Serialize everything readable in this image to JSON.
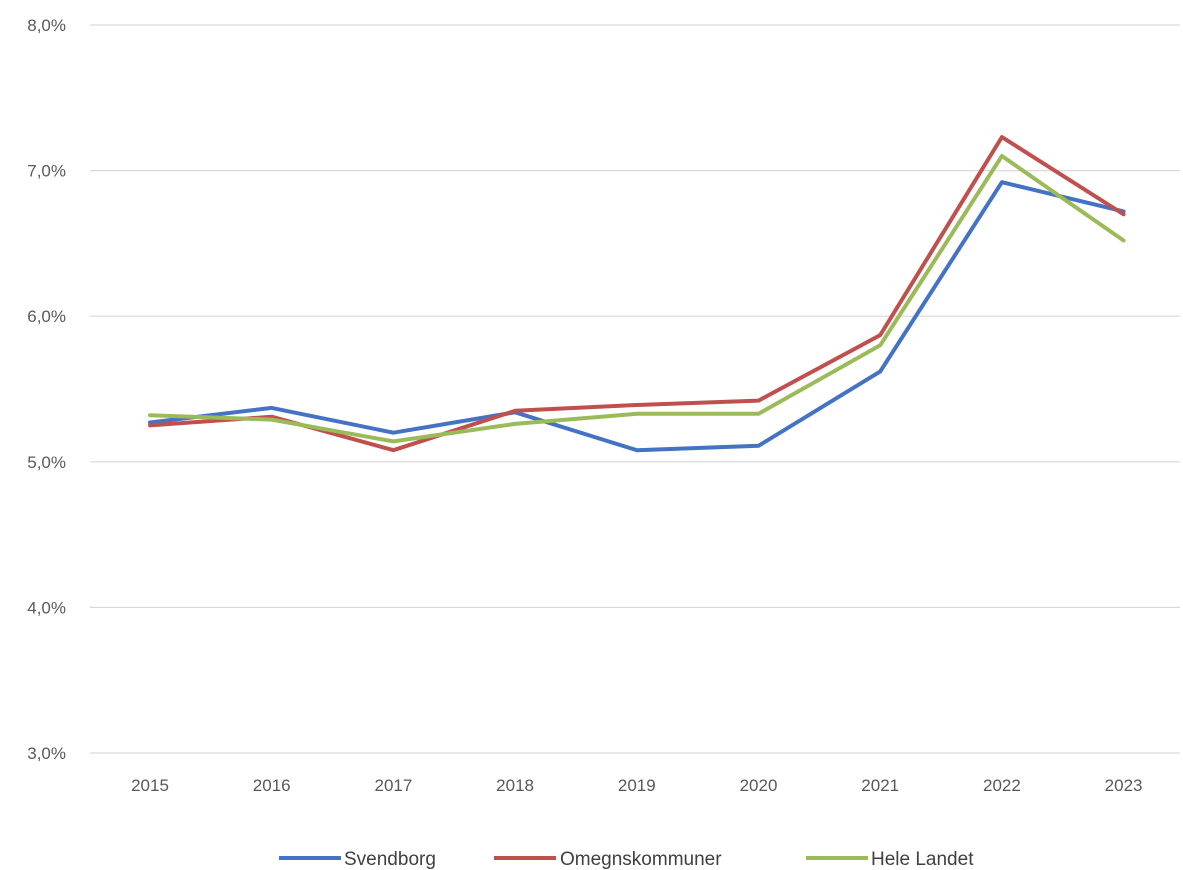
{
  "chart_data": {
    "type": "line",
    "title": "",
    "xlabel": "",
    "ylabel": "",
    "categories": [
      "2015",
      "2016",
      "2017",
      "2018",
      "2019",
      "2020",
      "2021",
      "2022",
      "2023"
    ],
    "y_ticks": [
      {
        "value": 3.0,
        "label": "3,0%"
      },
      {
        "value": 4.0,
        "label": "4,0%"
      },
      {
        "value": 5.0,
        "label": "5,0%"
      },
      {
        "value": 6.0,
        "label": "6,0%"
      },
      {
        "value": 7.0,
        "label": "7,0%"
      },
      {
        "value": 8.0,
        "label": "8,0%"
      }
    ],
    "ylim": [
      3.0,
      8.0
    ],
    "grid": true,
    "legend_position": "bottom",
    "series": [
      {
        "name": "Svendborg",
        "color": "#4472C4",
        "values": [
          5.27,
          5.37,
          5.2,
          5.34,
          5.08,
          5.11,
          5.62,
          6.92,
          6.72
        ]
      },
      {
        "name": "Omegnskommuner",
        "color": "#C0504D",
        "values": [
          5.25,
          5.31,
          5.08,
          5.35,
          5.39,
          5.42,
          5.87,
          7.23,
          6.7
        ]
      },
      {
        "name": "Hele Landet",
        "color": "#9BBB59",
        "values": [
          5.32,
          5.29,
          5.14,
          5.26,
          5.33,
          5.33,
          5.8,
          7.1,
          6.52
        ]
      }
    ]
  }
}
